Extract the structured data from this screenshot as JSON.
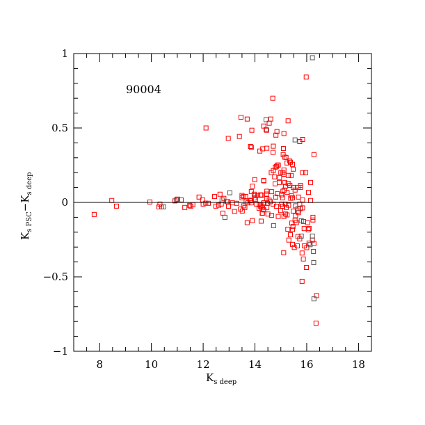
{
  "chart_data": {
    "type": "scatter",
    "title": "",
    "annotation": "90004",
    "xlabel": {
      "main": "K",
      "sub": "s deep"
    },
    "ylabel": {
      "main1": "K",
      "sub1": "s PSC",
      "dash": "−",
      "main2": "K",
      "sub2": "s deep"
    },
    "xlim": [
      7,
      18.5
    ],
    "ylim": [
      -1,
      1
    ],
    "xticks": [
      8,
      10,
      12,
      14,
      16,
      18
    ],
    "xtick_labels": [
      "8",
      "10",
      "12",
      "14",
      "16",
      "18"
    ],
    "yticks": [
      -1,
      -0.5,
      0,
      0.5,
      1
    ],
    "ytick_labels": [
      "−1",
      "−0.5",
      "0",
      "0.5",
      "1"
    ],
    "grid": false,
    "reference_line_y": 0,
    "marker": "open-square",
    "series": [
      {
        "color": "#ff0000",
        "points": [
          [
            7.79,
            -0.081
          ],
          [
            8.47,
            0.013
          ],
          [
            8.65,
            -0.025
          ],
          [
            9.94,
            0.003
          ],
          [
            10.29,
            -0.03
          ],
          [
            10.33,
            -0.011
          ],
          [
            10.4,
            -0.03
          ],
          [
            10.91,
            0.01
          ],
          [
            11.01,
            0.022
          ],
          [
            11.15,
            0.017
          ],
          [
            11.29,
            -0.034
          ],
          [
            11.48,
            -0.02
          ],
          [
            11.52,
            -0.025
          ],
          [
            11.6,
            -0.015
          ],
          [
            11.84,
            0.036
          ],
          [
            11.98,
            0.017
          ],
          [
            12.0,
            -0.011
          ],
          [
            12.1,
            -0.005
          ],
          [
            12.11,
            0.5
          ],
          [
            12.2,
            -0.006
          ],
          [
            12.44,
            0.04
          ],
          [
            12.49,
            -0.025
          ],
          [
            12.6,
            -0.019
          ],
          [
            12.65,
            0.055
          ],
          [
            12.7,
            -0.011
          ],
          [
            12.8,
            0.027
          ],
          [
            12.76,
            -0.072
          ],
          [
            12.91,
            0.005
          ],
          [
            12.95,
            0.005
          ],
          [
            12.98,
            -0.026
          ],
          [
            13.13,
            -0.003
          ],
          [
            13.21,
            -0.061
          ],
          [
            13.29,
            -0.006
          ],
          [
            13.44,
            -0.044
          ],
          [
            13.5,
            0.047
          ],
          [
            13.5,
            0.031
          ],
          [
            13.56,
            0.04
          ],
          [
            13.51,
            -0.058
          ],
          [
            13.56,
            -0.023
          ],
          [
            13.61,
            -0.034
          ],
          [
            13.64,
            0.04
          ],
          [
            13.66,
            0.005
          ],
          [
            13.73,
            -0.003
          ],
          [
            13.7,
            -0.136
          ],
          [
            13.81,
            0.011
          ],
          [
            13.85,
            0.015
          ],
          [
            13.86,
            -0.003
          ],
          [
            13.86,
            0.073
          ],
          [
            13.9,
            0.109
          ],
          [
            13.9,
            -0.122
          ],
          [
            13.97,
            0.055
          ],
          [
            13.99,
            0.03
          ],
          [
            14.02,
            0.02
          ],
          [
            13.99,
            0.153
          ],
          [
            14.11,
            0.048
          ],
          [
            14.06,
            -0.011
          ],
          [
            14.17,
            -0.015
          ],
          [
            14.23,
            -0.019
          ],
          [
            14.27,
            -0.034
          ],
          [
            14.16,
            -0.039
          ],
          [
            14.26,
            0.048
          ],
          [
            14.34,
            0.145
          ],
          [
            14.34,
            -0.003
          ],
          [
            14.29,
            -0.072
          ],
          [
            14.24,
            -0.126
          ],
          [
            14.34,
            -0.05
          ],
          [
            13.46,
            0.572
          ],
          [
            13.7,
            0.56
          ],
          [
            12.97,
            0.43
          ],
          [
            13.4,
            0.443
          ],
          [
            13.88,
            0.485
          ],
          [
            14.61,
            0.56
          ],
          [
            14.55,
            0.532
          ],
          [
            14.34,
            0.513
          ],
          [
            14.45,
            0.485
          ],
          [
            14.85,
            0.476
          ],
          [
            14.81,
            0.452
          ],
          [
            15.12,
            0.463
          ],
          [
            13.83,
            0.376
          ],
          [
            13.86,
            0.37
          ],
          [
            14.3,
            0.36
          ],
          [
            14.46,
            0.364
          ],
          [
            14.19,
            0.345
          ],
          [
            14.71,
            0.378
          ],
          [
            14.7,
            0.336
          ],
          [
            15.1,
            0.362
          ],
          [
            15.09,
            0.321
          ],
          [
            15.15,
            0.304
          ],
          [
            14.88,
            0.251
          ],
          [
            14.83,
            0.242
          ],
          [
            14.79,
            0.237
          ],
          [
            14.71,
            0.214
          ],
          [
            14.63,
            0.2
          ],
          [
            15.0,
            0.2
          ],
          [
            15.08,
            0.2
          ],
          [
            15.98,
            0.842
          ],
          [
            14.69,
            0.7
          ],
          [
            15.28,
            0.548
          ],
          [
            15.84,
            0.423
          ],
          [
            15.73,
            0.409
          ],
          [
            15.2,
            0.302
          ],
          [
            16.28,
            0.321
          ],
          [
            15.34,
            0.279
          ],
          [
            15.37,
            0.27
          ],
          [
            15.24,
            0.265
          ],
          [
            15.45,
            0.256
          ],
          [
            15.12,
            0.218
          ],
          [
            15.48,
            0.223
          ],
          [
            14.9,
            0.251
          ],
          [
            15.84,
            0.2
          ],
          [
            15.96,
            0.2
          ],
          [
            15.12,
            0.189
          ],
          [
            15.29,
            0.181
          ],
          [
            15.4,
            0.181
          ],
          [
            14.76,
            0.172
          ],
          [
            14.95,
            0.167
          ],
          [
            14.34,
            0.147
          ],
          [
            14.94,
            0.134
          ],
          [
            15.15,
            0.134
          ],
          [
            15.28,
            0.128
          ],
          [
            16.15,
            0.134
          ],
          [
            14.78,
            0.125
          ],
          [
            15.35,
            0.114
          ],
          [
            15.48,
            0.101
          ],
          [
            15.76,
            0.114
          ],
          [
            15.76,
            0.101
          ],
          [
            15.18,
            0.109
          ],
          [
            15.13,
            0.083
          ],
          [
            15.08,
            0.075
          ],
          [
            14.46,
            0.075
          ],
          [
            14.64,
            0.072
          ],
          [
            15.55,
            0.083
          ],
          [
            15.24,
            0.067
          ],
          [
            14.87,
            0.059
          ],
          [
            15.03,
            0.051
          ],
          [
            14.22,
            0.051
          ],
          [
            14.45,
            0.056
          ],
          [
            16.07,
            0.067
          ],
          [
            15.41,
            0.044
          ],
          [
            15.45,
            0.031
          ],
          [
            15.38,
            0.028
          ],
          [
            14.8,
            0.036
          ],
          [
            15.07,
            0.031
          ],
          [
            14.46,
            0.025
          ],
          [
            14.55,
            0.015
          ],
          [
            15.68,
            0.036
          ],
          [
            15.84,
            0.017
          ],
          [
            16.15,
            0.013
          ],
          [
            14.35,
            -0.003
          ],
          [
            14.48,
            -0.006
          ],
          [
            14.59,
            0.005
          ],
          [
            14.7,
            -0.011
          ],
          [
            14.83,
            -0.026
          ],
          [
            15.03,
            -0.011
          ],
          [
            15.17,
            -0.011
          ],
          [
            15.3,
            -0.019
          ],
          [
            15.07,
            -0.026
          ],
          [
            15.21,
            -0.034
          ],
          [
            15.57,
            -0.023
          ],
          [
            15.73,
            -0.011
          ],
          [
            15.75,
            -0.042
          ],
          [
            15.84,
            -0.037
          ],
          [
            14.22,
            -0.026
          ],
          [
            14.33,
            -0.05
          ],
          [
            14.46,
            -0.034
          ],
          [
            14.5,
            -0.078
          ],
          [
            14.28,
            -0.073
          ],
          [
            14.64,
            -0.087
          ],
          [
            14.9,
            -0.094
          ],
          [
            15.12,
            -0.094
          ],
          [
            14.99,
            -0.055
          ],
          [
            15.18,
            -0.078
          ],
          [
            15.24,
            -0.084
          ],
          [
            15.48,
            -0.058
          ],
          [
            15.68,
            -0.069
          ],
          [
            15.66,
            -0.058
          ],
          [
            15.57,
            -0.089
          ],
          [
            16.24,
            -0.1
          ],
          [
            14.72,
            -0.156
          ],
          [
            15.42,
            -0.139
          ],
          [
            15.6,
            -0.136
          ],
          [
            15.55,
            -0.12
          ],
          [
            15.88,
            -0.128
          ],
          [
            16.03,
            -0.136
          ],
          [
            16.24,
            -0.118
          ],
          [
            15.27,
            -0.18
          ],
          [
            15.45,
            -0.182
          ],
          [
            15.47,
            -0.162
          ],
          [
            15.9,
            -0.176
          ],
          [
            16.06,
            -0.184
          ],
          [
            16.09,
            -0.175
          ],
          [
            15.37,
            -0.217
          ],
          [
            15.66,
            -0.229
          ],
          [
            15.73,
            -0.245
          ],
          [
            16.22,
            -0.253
          ],
          [
            15.31,
            -0.253
          ],
          [
            16.09,
            -0.273
          ],
          [
            16.28,
            -0.276
          ],
          [
            15.45,
            -0.282
          ],
          [
            15.52,
            -0.303
          ],
          [
            15.64,
            -0.292
          ],
          [
            15.91,
            -0.292
          ],
          [
            16.0,
            -0.304
          ],
          [
            15.11,
            -0.338
          ],
          [
            15.82,
            -0.34
          ],
          [
            16.26,
            -0.329
          ],
          [
            15.87,
            -0.38
          ],
          [
            15.99,
            -0.437
          ],
          [
            15.82,
            -0.53
          ],
          [
            16.38,
            -0.626
          ],
          [
            16.36,
            -0.811
          ]
        ]
      },
      {
        "color": "#555555",
        "points": [
          [
            16.22,
            0.972
          ],
          [
            14.43,
            0.556
          ],
          [
            14.43,
            0.49
          ],
          [
            16.28,
            -0.648
          ],
          [
            16.27,
            -0.404
          ],
          [
            16.22,
            -0.226
          ],
          [
            16.13,
            -0.284
          ],
          [
            15.79,
            -0.123
          ],
          [
            13.03,
            0.065
          ],
          [
            12.84,
            -0.1
          ],
          [
            12.73,
            0.017
          ],
          [
            10.47,
            -0.03
          ],
          [
            10.96,
            0.017
          ],
          [
            15.66,
            0.101
          ],
          [
            14.01,
            0.045
          ],
          [
            15.55,
            0.42
          ],
          [
            15.79,
            -0.226
          ],
          [
            15.66,
            -0.042
          ]
        ]
      }
    ]
  }
}
